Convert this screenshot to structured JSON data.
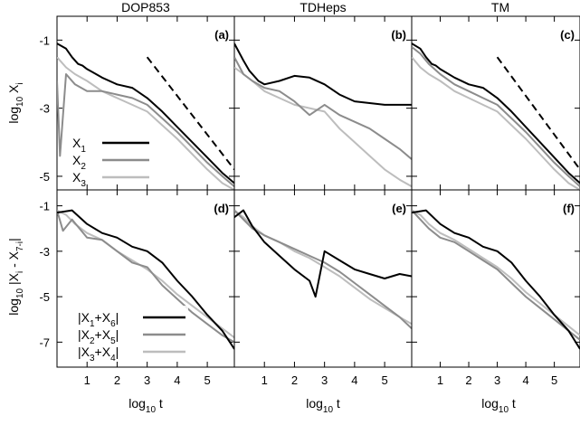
{
  "column_titles": [
    "DOP853",
    "TDHeps",
    "TM"
  ],
  "xlabel": {
    "base": "log",
    "sub": "10",
    "rest": " t"
  },
  "ylabel_top": {
    "base": "log",
    "sub": "10",
    "rest": " X",
    "sub2": "i"
  },
  "ylabel_bottom": {
    "base": "log",
    "sub": "10",
    "rest": " |X",
    "sub2": "i",
    "rest2": " - X",
    "sub3": "7-i",
    "rest3": "|"
  },
  "colors": {
    "s1": "#000000",
    "s2": "#8c8c8c",
    "s3": "#bdbdbd",
    "ref": "#000000"
  },
  "legend_top": [
    {
      "base": "X",
      "sub": "1"
    },
    {
      "base": "X",
      "sub": "2"
    },
    {
      "base": "X",
      "sub": "3"
    }
  ],
  "legend_bottom": [
    {
      "pre": "|X",
      "sub1": "1",
      "mid": "+X",
      "sub2": "6",
      "post": "|"
    },
    {
      "pre": "|X",
      "sub1": "2",
      "mid": "+X",
      "sub2": "5",
      "post": "|"
    },
    {
      "pre": "|X",
      "sub1": "3",
      "mid": "+X",
      "sub2": "4",
      "post": "|"
    }
  ],
  "chart_data": [
    {
      "type": "line",
      "panel": "(a)",
      "row": 0,
      "col": 0,
      "xlim": [
        0,
        5.9
      ],
      "ylim": [
        -5.4,
        -0.3
      ],
      "xticks": [
        1,
        2,
        3,
        4,
        5
      ],
      "yticks": [
        -1,
        -3,
        -5
      ],
      "reference_slope": {
        "x": [
          3.0,
          5.9
        ],
        "y": [
          -1.5,
          -4.8
        ]
      },
      "series": [
        {
          "x": [
            0,
            0.3,
            0.5,
            0.7,
            0.85,
            1,
            1.2,
            1.5,
            2,
            2.5,
            3,
            3.5,
            4,
            4.5,
            5,
            5.5,
            5.9
          ],
          "y": [
            -1.1,
            -1.25,
            -1.5,
            -1.7,
            -1.75,
            -1.85,
            -1.95,
            -2.1,
            -2.3,
            -2.4,
            -2.7,
            -3.1,
            -3.55,
            -4.0,
            -4.45,
            -4.9,
            -5.2
          ]
        },
        {
          "x": [
            0,
            0.1,
            0.3,
            0.6,
            1,
            1.5,
            2,
            2.5,
            3,
            3.5,
            4,
            4.5,
            5,
            5.5,
            5.9
          ],
          "y": [
            -2.2,
            -4.4,
            -2.0,
            -2.3,
            -2.5,
            -2.5,
            -2.6,
            -2.7,
            -2.9,
            -3.3,
            -3.7,
            -4.15,
            -4.6,
            -5.0,
            -5.3
          ]
        },
        {
          "x": [
            0,
            0.3,
            0.6,
            1,
            1.5,
            2,
            2.5,
            3,
            3.5,
            4,
            4.5,
            5,
            5.5,
            5.9
          ],
          "y": [
            -1.5,
            -1.8,
            -2.0,
            -2.2,
            -2.5,
            -2.7,
            -2.9,
            -3.1,
            -3.5,
            -3.9,
            -4.35,
            -4.8,
            -5.2,
            -5.4
          ]
        }
      ]
    },
    {
      "type": "line",
      "panel": "(b)",
      "row": 0,
      "col": 1,
      "xlim": [
        0,
        5.9
      ],
      "ylim": [
        -5.4,
        -0.3
      ],
      "xticks": [
        1,
        2,
        3,
        4,
        5
      ],
      "yticks": [
        -1,
        -3,
        -5
      ],
      "reference_slope": null,
      "series": [
        {
          "x": [
            0,
            0.3,
            0.5,
            0.8,
            1,
            1.5,
            2,
            2.5,
            3,
            3.5,
            4,
            4.5,
            5,
            5.5,
            5.9
          ],
          "y": [
            -1.1,
            -1.6,
            -1.9,
            -2.2,
            -2.3,
            -2.2,
            -2.05,
            -2.1,
            -2.3,
            -2.6,
            -2.8,
            -2.85,
            -2.9,
            -2.9,
            -2.9
          ]
        },
        {
          "x": [
            0,
            0.3,
            0.6,
            1,
            1.5,
            2,
            2.5,
            3,
            3.5,
            4,
            4.5,
            5,
            5.5,
            5.9
          ],
          "y": [
            -1.5,
            -2.0,
            -2.2,
            -2.4,
            -2.5,
            -2.8,
            -3.2,
            -2.9,
            -3.2,
            -3.4,
            -3.6,
            -3.9,
            -4.2,
            -4.5
          ]
        },
        {
          "x": [
            0,
            0.3,
            0.6,
            1,
            1.5,
            2,
            2.5,
            3,
            3.5,
            4,
            4.5,
            5,
            5.5,
            5.9
          ],
          "y": [
            -1.8,
            -2.0,
            -2.2,
            -2.5,
            -2.7,
            -2.9,
            -3.0,
            -3.1,
            -3.6,
            -4.0,
            -4.4,
            -4.8,
            -5.1,
            -5.3
          ]
        }
      ]
    },
    {
      "type": "line",
      "panel": "(c)",
      "row": 0,
      "col": 2,
      "xlim": [
        0,
        5.9
      ],
      "ylim": [
        -5.4,
        -0.3
      ],
      "xticks": [
        1,
        2,
        3,
        4,
        5
      ],
      "yticks": [
        -1,
        -3,
        -5
      ],
      "reference_slope": {
        "x": [
          3.0,
          5.9
        ],
        "y": [
          -1.5,
          -4.8
        ]
      },
      "series": [
        {
          "x": [
            0,
            0.3,
            0.5,
            0.7,
            0.85,
            1,
            1.2,
            1.5,
            2,
            2.5,
            3,
            3.5,
            4,
            4.5,
            5,
            5.5,
            5.9
          ],
          "y": [
            -1.1,
            -1.25,
            -1.5,
            -1.7,
            -1.75,
            -1.85,
            -1.95,
            -2.1,
            -2.3,
            -2.4,
            -2.7,
            -3.1,
            -3.55,
            -4.0,
            -4.45,
            -4.9,
            -5.2
          ]
        },
        {
          "x": [
            0,
            0.3,
            0.6,
            1,
            1.5,
            2,
            2.5,
            3,
            3.5,
            4,
            4.5,
            5,
            5.5,
            5.9
          ],
          "y": [
            -1.2,
            -1.4,
            -1.7,
            -2.0,
            -2.3,
            -2.5,
            -2.7,
            -2.9,
            -3.3,
            -3.7,
            -4.15,
            -4.6,
            -5.0,
            -5.3
          ]
        },
        {
          "x": [
            0,
            0.3,
            0.6,
            1,
            1.5,
            2,
            2.5,
            3,
            3.5,
            4,
            4.5,
            5,
            5.5,
            5.9
          ],
          "y": [
            -1.5,
            -1.8,
            -2.0,
            -2.2,
            -2.5,
            -2.7,
            -2.9,
            -3.1,
            -3.5,
            -3.9,
            -4.35,
            -4.8,
            -5.2,
            -5.4
          ]
        }
      ]
    },
    {
      "type": "line",
      "panel": "(d)",
      "row": 1,
      "col": 0,
      "xlim": [
        0,
        5.9
      ],
      "ylim": [
        -8.1,
        -0.3
      ],
      "xticks": [
        1,
        2,
        3,
        4,
        5
      ],
      "yticks": [
        -1,
        -3,
        -5,
        -7
      ],
      "reference_slope": null,
      "series": [
        {
          "x": [
            0,
            0.5,
            1,
            1.5,
            2,
            2.5,
            3,
            3.5,
            4,
            4.5,
            5,
            5.5,
            5.9
          ],
          "y": [
            -1.3,
            -1.2,
            -1.8,
            -2.2,
            -2.4,
            -2.8,
            -3.0,
            -3.5,
            -4.3,
            -5.0,
            -5.8,
            -6.5,
            -7.3
          ]
        },
        {
          "x": [
            0,
            0.2,
            0.5,
            1,
            1.5,
            2,
            2.5,
            3,
            3.5,
            4,
            4.5,
            5,
            5.5,
            5.9
          ],
          "y": [
            -1.2,
            -2.1,
            -1.6,
            -2.4,
            -2.5,
            -3.0,
            -3.5,
            -3.7,
            -4.5,
            -5.1,
            -5.7,
            -6.2,
            -6.7,
            -7.0
          ]
        },
        {
          "x": [
            0,
            0.3,
            0.6,
            1,
            1.5,
            2,
            2.5,
            3,
            3.5,
            4,
            4.5,
            5,
            5.5,
            5.9
          ],
          "y": [
            -1.2,
            -1.4,
            -1.8,
            -2.2,
            -2.5,
            -3.0,
            -3.4,
            -3.8,
            -4.3,
            -4.9,
            -5.4,
            -5.9,
            -6.4,
            -6.8
          ]
        }
      ]
    },
    {
      "type": "line",
      "panel": "(e)",
      "row": 1,
      "col": 1,
      "xlim": [
        0,
        5.9
      ],
      "ylim": [
        -8.1,
        -0.3
      ],
      "xticks": [
        1,
        2,
        3,
        4,
        5
      ],
      "yticks": [
        -1,
        -3,
        -5,
        -7
      ],
      "reference_slope": null,
      "series": [
        {
          "x": [
            0,
            0.3,
            0.6,
            1,
            1.5,
            2,
            2.5,
            2.7,
            3,
            3.5,
            4,
            4.5,
            5,
            5.5,
            5.9
          ],
          "y": [
            -1.5,
            -1.2,
            -1.9,
            -2.6,
            -3.2,
            -3.8,
            -4.3,
            -5.0,
            -3.0,
            -3.4,
            -3.8,
            -4.0,
            -4.2,
            -4.0,
            -4.1
          ]
        },
        {
          "x": [
            0,
            0.3,
            0.6,
            1,
            1.5,
            2,
            2.5,
            3,
            3.5,
            4,
            4.5,
            5,
            5.5,
            5.9
          ],
          "y": [
            -1.2,
            -1.6,
            -2.0,
            -2.3,
            -2.6,
            -2.9,
            -3.2,
            -3.5,
            -3.9,
            -4.4,
            -4.9,
            -5.4,
            -5.9,
            -6.4
          ]
        },
        {
          "x": [
            0,
            0.3,
            0.6,
            1,
            1.5,
            2,
            2.5,
            3,
            3.5,
            4,
            4.5,
            5,
            5.5,
            5.9
          ],
          "y": [
            -1.2,
            -1.5,
            -1.9,
            -2.3,
            -2.6,
            -3.0,
            -3.3,
            -3.7,
            -4.1,
            -4.6,
            -5.1,
            -5.5,
            -5.9,
            -6.2
          ]
        }
      ]
    },
    {
      "type": "line",
      "panel": "(f)",
      "row": 1,
      "col": 2,
      "xlim": [
        0,
        5.9
      ],
      "ylim": [
        -8.1,
        -0.3
      ],
      "xticks": [
        1,
        2,
        3,
        4,
        5
      ],
      "yticks": [
        -1,
        -3,
        -5,
        -7
      ],
      "reference_slope": null,
      "series": [
        {
          "x": [
            0,
            0.5,
            1,
            1.5,
            2,
            2.5,
            3,
            3.5,
            4,
            4.5,
            5,
            5.5,
            5.9
          ],
          "y": [
            -1.3,
            -1.2,
            -1.8,
            -2.2,
            -2.4,
            -2.8,
            -3.0,
            -3.5,
            -4.3,
            -5.0,
            -5.8,
            -6.5,
            -7.3
          ]
        },
        {
          "x": [
            0,
            0.3,
            0.6,
            1,
            1.5,
            2,
            2.5,
            3,
            3.5,
            4,
            4.5,
            5,
            5.5,
            5.9
          ],
          "y": [
            -1.2,
            -1.6,
            -2.0,
            -2.4,
            -2.6,
            -3.0,
            -3.4,
            -3.8,
            -4.4,
            -5.0,
            -5.5,
            -6.0,
            -6.5,
            -6.9
          ]
        },
        {
          "x": [
            0,
            0.3,
            0.6,
            1,
            1.5,
            2,
            2.5,
            3,
            3.5,
            4,
            4.5,
            5,
            5.5,
            5.9
          ],
          "y": [
            -1.2,
            -1.4,
            -1.8,
            -2.2,
            -2.5,
            -2.9,
            -3.3,
            -3.7,
            -4.2,
            -4.8,
            -5.3,
            -5.8,
            -6.3,
            -6.7
          ]
        }
      ]
    }
  ],
  "panel_labels": [
    "(a)",
    "(b)",
    "(c)",
    "(d)",
    "(e)",
    "(f)"
  ]
}
